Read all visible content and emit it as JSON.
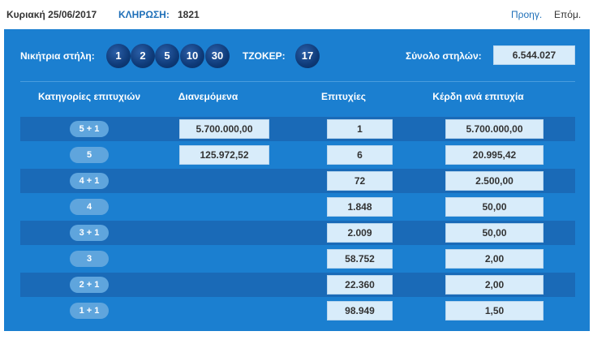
{
  "header": {
    "date": "Κυριακή 25/06/2017",
    "draw_label": "ΚΛΗΡΩΣΗ:",
    "draw_number": "1821",
    "prev_label": "Προηγ.",
    "next_label": "Επόμ."
  },
  "summary": {
    "winning_label": "Νικήτρια στήλη:",
    "winning_numbers": [
      "1",
      "2",
      "5",
      "10",
      "30"
    ],
    "joker_label": "ΤΖΟΚΕΡ:",
    "joker_number": "17",
    "total_label": "Σύνολο στηλών:",
    "total_value": "6.544.027"
  },
  "table": {
    "headers": [
      "Κατηγορίες επιτυχιών",
      "Διανεμόμενα",
      "Επιτυχίες",
      "Κέρδη ανά επιτυχία"
    ],
    "rows": [
      {
        "category": "5 + 1",
        "distributed": "5.700.000,00",
        "winners": "1",
        "prize": "5.700.000,00"
      },
      {
        "category": "5",
        "distributed": "125.972,52",
        "winners": "6",
        "prize": "20.995,42"
      },
      {
        "category": "4 + 1",
        "distributed": "",
        "winners": "72",
        "prize": "2.500,00"
      },
      {
        "category": "4",
        "distributed": "",
        "winners": "1.848",
        "prize": "50,00"
      },
      {
        "category": "3 + 1",
        "distributed": "",
        "winners": "2.009",
        "prize": "50,00"
      },
      {
        "category": "3",
        "distributed": "",
        "winners": "58.752",
        "prize": "2,00"
      },
      {
        "category": "2 + 1",
        "distributed": "",
        "winners": "22.360",
        "prize": "2,00"
      },
      {
        "category": "1 + 1",
        "distributed": "",
        "winners": "98.949",
        "prize": "1,50"
      }
    ]
  }
}
